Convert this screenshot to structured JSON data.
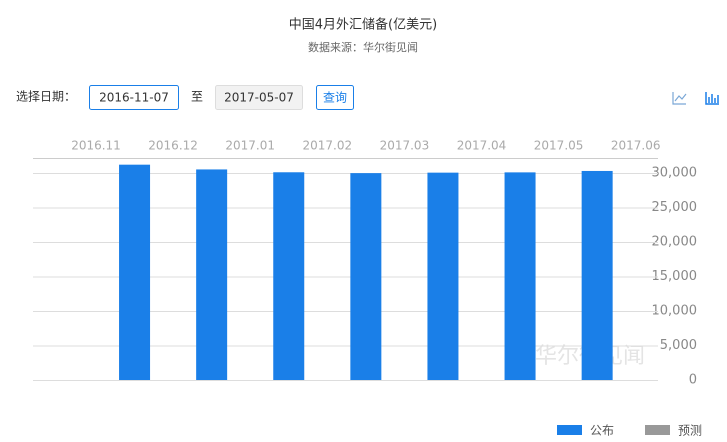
{
  "chart_data": {
    "type": "bar",
    "title": "中国4月外汇储备(亿美元)",
    "subtitle": "数据来源：华尔街见闻",
    "controls": {
      "label": "选择日期：",
      "start": "2016-11-07",
      "to": "至",
      "end": "2017-05-07",
      "button": "查询"
    },
    "xticks": [
      "2016.11",
      "2016.12",
      "2017.01",
      "2017.02",
      "2017.03",
      "2017.04",
      "2017.05",
      "2017.06"
    ],
    "series": [
      {
        "name": "公布",
        "color": "#1a7fe8",
        "values": [
          31206,
          30516,
          30105,
          29982,
          30051,
          30091,
          30295
        ]
      },
      {
        "name": "预测",
        "color": "#999999",
        "values": []
      }
    ],
    "ylim": [
      0,
      30000
    ],
    "yticks": [
      0,
      {
        "value": 5000,
        "label": "5,000"
      },
      {
        "value": 10000,
        "label": "10,000"
      },
      {
        "value": 15000,
        "label": "15,000"
      },
      {
        "value": 20000,
        "label": "20,000"
      },
      {
        "value": 25000,
        "label": "25,000"
      },
      {
        "value": 30000,
        "label": "30,000"
      }
    ],
    "grid": true,
    "watermark": "华尔街见闻",
    "legend": "bottom-right"
  }
}
